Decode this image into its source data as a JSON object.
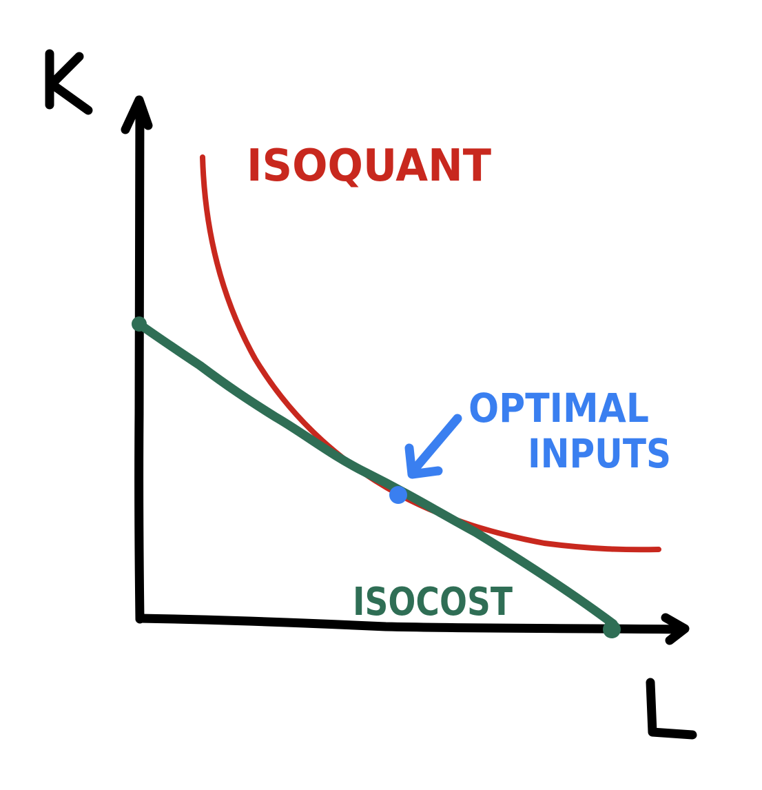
{
  "diagram": {
    "axes": {
      "y_label": "K",
      "x_label": "L"
    },
    "isoquant": {
      "label": "ISOQUANT",
      "color": "#c8281e"
    },
    "isocost": {
      "label": "ISOCOST",
      "color": "#2f6e55"
    },
    "optimum": {
      "label_line1": "OPTIMAL",
      "label_line2": "INPUTS",
      "color": "#3a7ff0"
    },
    "axis_color": "#000000"
  }
}
